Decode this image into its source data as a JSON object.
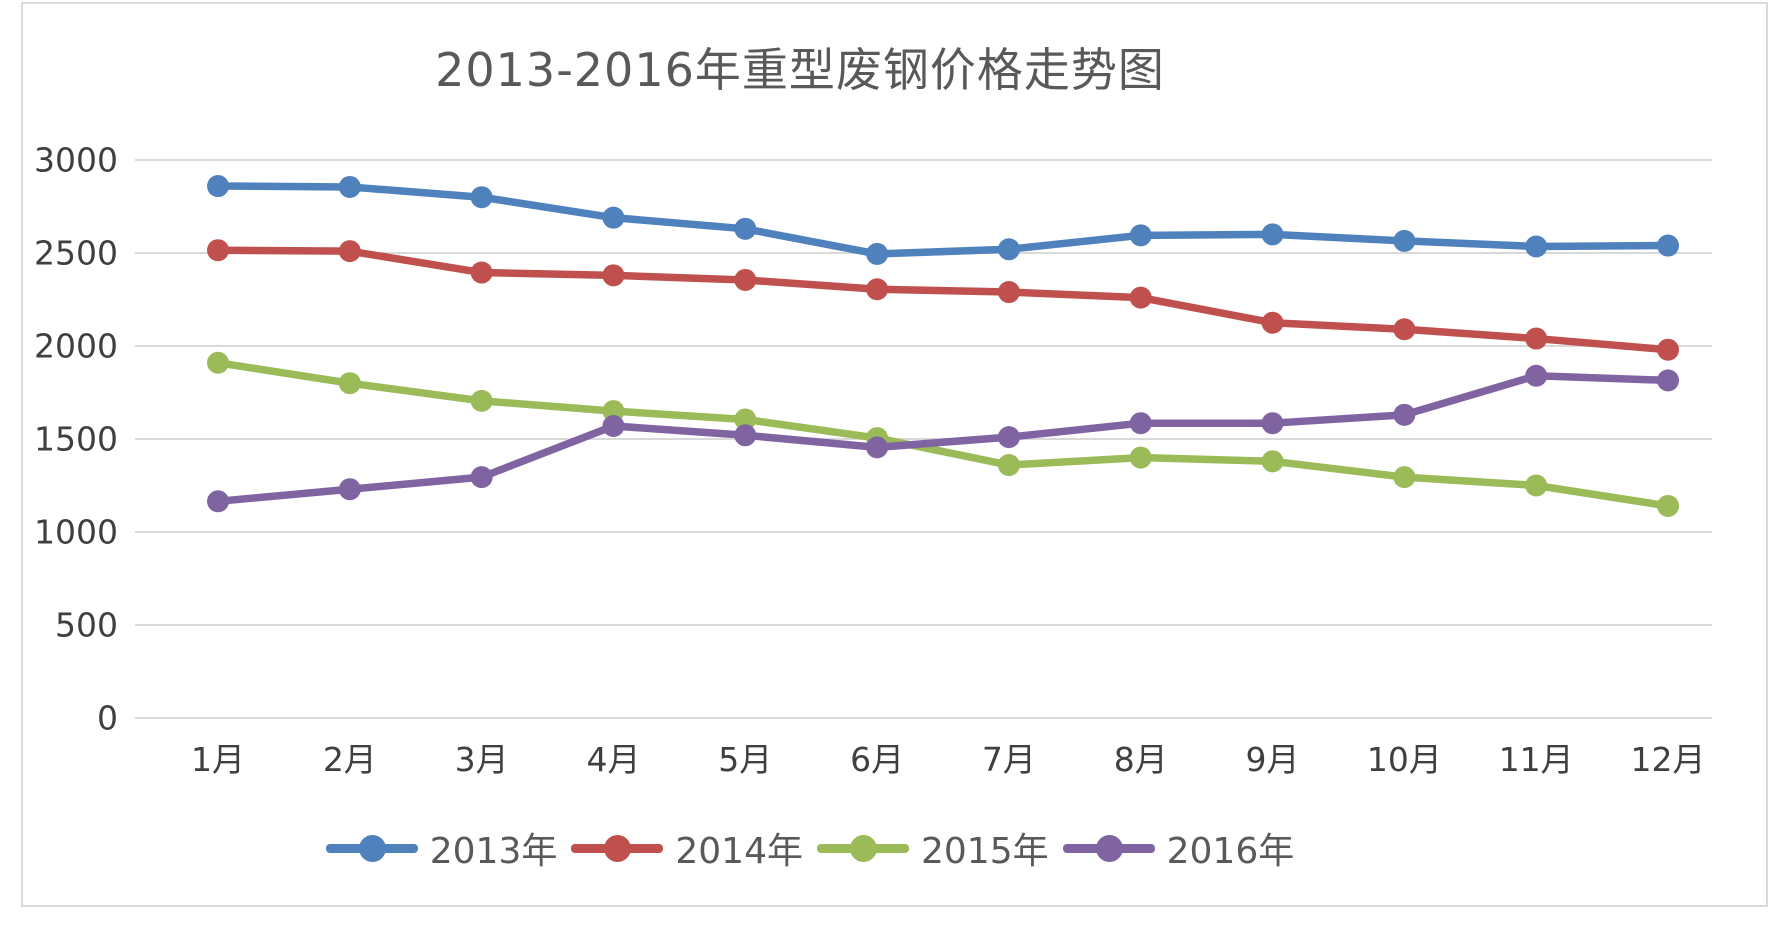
{
  "page": {
    "background_color": "#ffffff",
    "border_color": "#d9d9d9",
    "gridline_color": "#d9d9d9",
    "title_color": "#595959",
    "tick_label_color": "#3f3f3f"
  },
  "chart_data": {
    "type": "line",
    "title": "2013-2016年重型废钢价格走势图",
    "xlabel": "",
    "ylabel": "",
    "categories": [
      "1月",
      "2月",
      "3月",
      "4月",
      "5月",
      "6月",
      "7月",
      "8月",
      "9月",
      "10月",
      "11月",
      "12月"
    ],
    "series": [
      {
        "name": "2013年",
        "color": "#4F81BD",
        "values": [
          2860,
          2855,
          2800,
          2690,
          2630,
          2495,
          2520,
          2595,
          2600,
          2565,
          2535,
          2540
        ]
      },
      {
        "name": "2014年",
        "color": "#C0504D",
        "values": [
          2515,
          2510,
          2395,
          2380,
          2355,
          2305,
          2290,
          2260,
          2125,
          2090,
          2040,
          1980
        ]
      },
      {
        "name": "2015年",
        "color": "#9BBB59",
        "values": [
          1910,
          1800,
          1705,
          1650,
          1605,
          1505,
          1360,
          1400,
          1380,
          1295,
          1250,
          1140
        ]
      },
      {
        "name": "2016年",
        "color": "#8064A2",
        "values": [
          1165,
          1230,
          1295,
          1570,
          1520,
          1455,
          1510,
          1585,
          1585,
          1630,
          1840,
          1815
        ]
      }
    ],
    "ylim": [
      0,
      3000
    ],
    "yticks": [
      0,
      500,
      1000,
      1500,
      2000,
      2500,
      3000
    ],
    "grid": true,
    "legend_position": "bottom"
  }
}
